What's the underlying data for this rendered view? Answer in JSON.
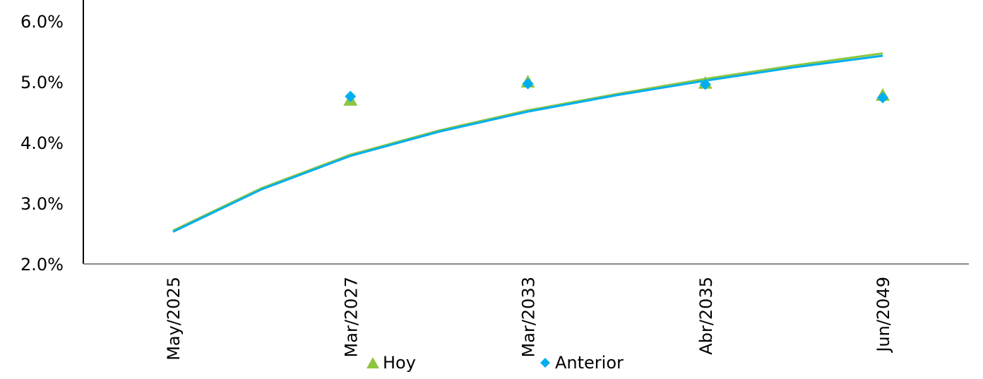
{
  "chart_data": {
    "type": "scatter",
    "categories": [
      "May/2025",
      "Mar/2027",
      "Mar/2033",
      "Abr/2035",
      "Jun/2049"
    ],
    "ylim": [
      0.02,
      0.06
    ],
    "yticks": [
      "2.0%",
      "3.0%",
      "4.0%",
      "5.0%",
      "6.0%"
    ],
    "series": [
      {
        "name": "Hoy",
        "marker": "triangle",
        "color": "#8DC63F",
        "values": [
          null,
          0.047,
          0.05,
          0.0498,
          0.0478
        ]
      },
      {
        "name": "Anterior",
        "marker": "diamond",
        "color": "#00AEEF",
        "values": [
          null,
          0.0476,
          0.0497,
          0.0496,
          0.0474
        ]
      }
    ],
    "trendlines": [
      {
        "series": "Hoy",
        "color": "#8DC63F",
        "type": "logarithmic",
        "x": [
          0,
          0.5,
          1,
          1.5,
          2,
          2.5,
          3,
          3.5,
          4
        ],
        "values": [
          0.0255,
          0.0325,
          0.038,
          0.042,
          0.0453,
          0.048,
          0.0505,
          0.0527,
          0.0547
        ]
      },
      {
        "series": "Anterior",
        "color": "#00AEEF",
        "type": "logarithmic",
        "x": [
          0,
          0.5,
          1,
          1.5,
          2,
          2.5,
          3,
          3.5,
          4
        ],
        "values": [
          0.0253,
          0.0323,
          0.0378,
          0.0418,
          0.0451,
          0.0478,
          0.0502,
          0.0524,
          0.0543
        ]
      }
    ],
    "grid": false,
    "legend_position": "bottom"
  }
}
